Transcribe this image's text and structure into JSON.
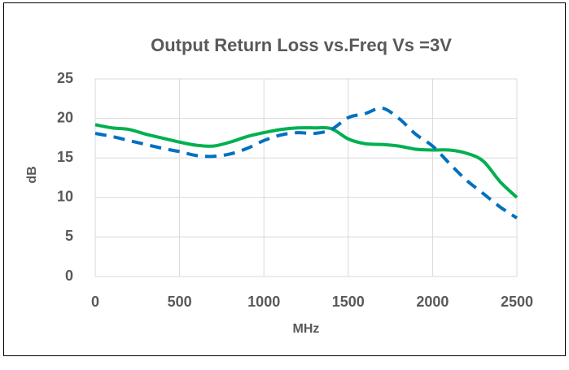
{
  "chart_data": {
    "type": "line",
    "title": "Output Return Loss vs.Freq Vs =3V",
    "x_label": "MHz",
    "y_label": "dB",
    "x": [
      0,
      100,
      200,
      300,
      400,
      500,
      600,
      700,
      800,
      900,
      1000,
      1100,
      1200,
      1300,
      1400,
      1500,
      1600,
      1700,
      1800,
      1900,
      2000,
      2100,
      2200,
      2300,
      2400,
      2500
    ],
    "series": [
      {
        "color": "#00b050",
        "dashed": false,
        "values": [
          19.2,
          18.8,
          18.6,
          18.0,
          17.5,
          17.0,
          16.6,
          16.5,
          17.0,
          17.7,
          18.2,
          18.6,
          18.8,
          18.8,
          18.7,
          17.4,
          16.8,
          16.7,
          16.5,
          16.1,
          16.0,
          16.0,
          15.6,
          14.6,
          12.0,
          10.0
        ]
      },
      {
        "color": "#0070c0",
        "dashed": true,
        "values": [
          18.1,
          17.7,
          17.2,
          16.7,
          16.2,
          15.8,
          15.3,
          15.2,
          15.5,
          16.2,
          17.2,
          17.9,
          18.2,
          18.1,
          18.6,
          20.1,
          20.6,
          21.3,
          20.0,
          18.0,
          16.5,
          14.3,
          12.2,
          10.5,
          8.8,
          7.4
        ]
      }
    ],
    "xlim": [
      0,
      2500
    ],
    "xticks": [
      0,
      500,
      1000,
      1500,
      2000,
      2500
    ],
    "ylim": [
      0,
      25
    ],
    "yticks": [
      0,
      5,
      10,
      15,
      20,
      25
    ],
    "grid": true
  }
}
